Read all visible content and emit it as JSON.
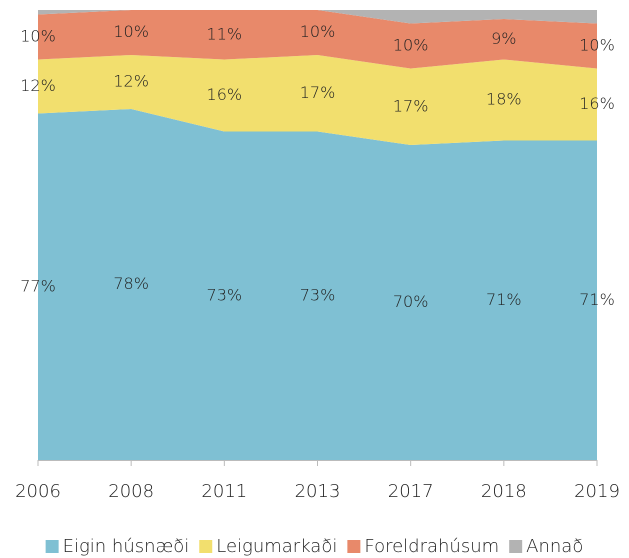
{
  "chart_data": {
    "type": "stacked_area",
    "categories": [
      "2006",
      "2008",
      "2011",
      "2013",
      "2017",
      "2018",
      "2019"
    ],
    "ylim": [
      0,
      100
    ],
    "series": [
      {
        "name": "Eigin húsnæði",
        "color": "#7fc0d3",
        "values": [
          77,
          78,
          73,
          73,
          70,
          71,
          71
        ],
        "value_labels": [
          "77%",
          "78%",
          "73%",
          "73%",
          "70%",
          "71%",
          "71%"
        ]
      },
      {
        "name": "Leigumarkaði",
        "color": "#f2df6e",
        "values": [
          12,
          12,
          16,
          17,
          17,
          18,
          16
        ],
        "value_labels": [
          "12%",
          "12%",
          "16%",
          "17%",
          "17%",
          "18%",
          "16%"
        ]
      },
      {
        "name": "Foreldrahúsum",
        "color": "#e8896a",
        "values": [
          10,
          10,
          11,
          10,
          10,
          9,
          10
        ],
        "value_labels": [
          "10%",
          "10%",
          "11%",
          "10%",
          "10%",
          "9%",
          "10%"
        ]
      },
      {
        "name": "Annað",
        "color": "#b3b3b3",
        "values": [
          1,
          0,
          0,
          0,
          3,
          2,
          3
        ]
      }
    ]
  }
}
